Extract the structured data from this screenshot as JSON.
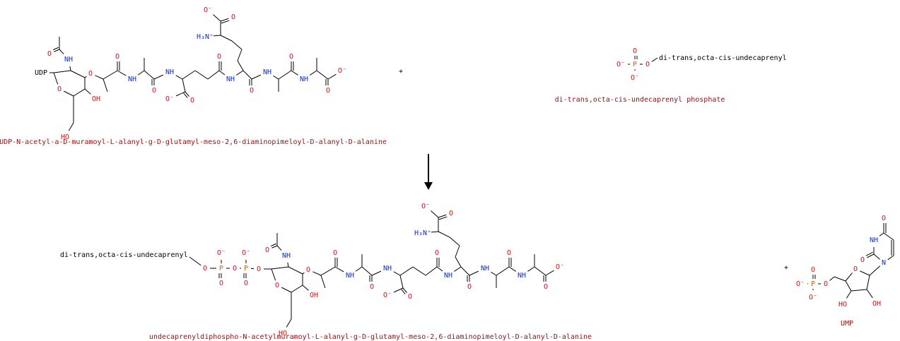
{
  "reaction": {
    "reactants": [
      {
        "name": "UDP-N-acetyl-a-D-muramoyl-L-alanyl-g-D-glutamyl-meso-2,6-diaminopimeloyl-D-alanyl-D-alanine",
        "atoms": [
          "UDP",
          "O",
          "NH",
          "O",
          "O",
          "O",
          "NH",
          "O",
          "NH",
          "O⁻",
          "O",
          "O",
          "NH",
          "O",
          "NH",
          "O",
          "NH",
          "O",
          "O⁻",
          "H₃N⁺",
          "O⁻",
          "O",
          "OH",
          "HO"
        ]
      },
      {
        "name": "di-trans,octa-cis-undecaprenyl phosphate",
        "group": "di-trans,octa-cis-undecaprenyl",
        "atoms": [
          "O",
          "O⁻",
          "P",
          "O",
          "O⁻"
        ]
      }
    ],
    "products": [
      {
        "name": "undecaprenyldiphospho-N-acetylmuramoyl-L-alanyl-g-D-glutamyl-meso-2,6-diaminopimeloyl-D-alanyl-D-alanine",
        "group": "di-trans,octa-cis-undecaprenyl",
        "linker_atoms": [
          "O",
          "P",
          "O⁻",
          "O",
          "O",
          "P",
          "O⁻",
          "O"
        ],
        "atoms": [
          "O",
          "O",
          "NH",
          "O",
          "O",
          "O",
          "NH",
          "O",
          "NH",
          "O⁻",
          "O",
          "O",
          "NH",
          "O",
          "NH",
          "O",
          "NH",
          "O",
          "O⁻",
          "H₃N⁺",
          "O⁻",
          "O",
          "OH",
          "HO"
        ]
      },
      {
        "name": "UMP",
        "atoms": [
          "O⁻",
          "P",
          "O",
          "O⁻",
          "O",
          "O",
          "OH",
          "HO",
          "N",
          "O",
          "NH",
          "O"
        ]
      }
    ],
    "plus_signs": [
      "+",
      "+"
    ]
  }
}
